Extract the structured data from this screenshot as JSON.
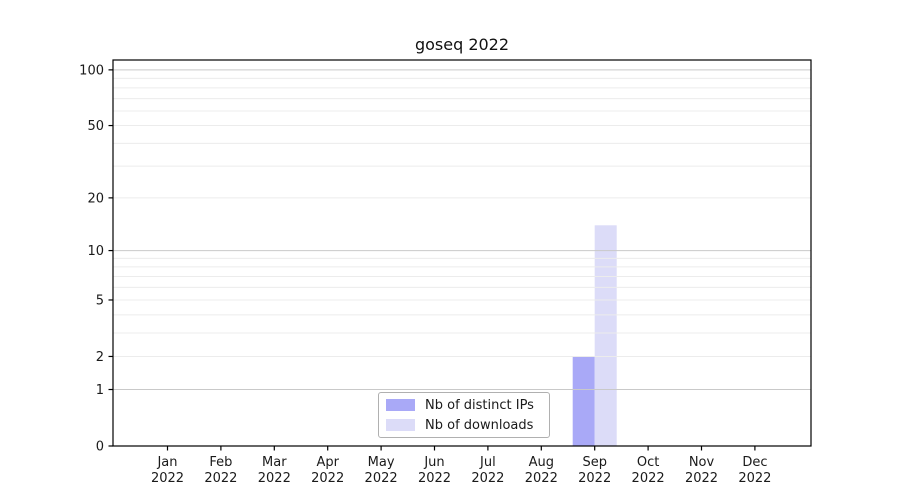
{
  "chart_data": {
    "type": "bar",
    "title": "goseq 2022",
    "categories": [
      "Jan 2022",
      "Feb 2022",
      "Mar 2022",
      "Apr 2022",
      "May 2022",
      "Jun 2022",
      "Jul 2022",
      "Aug 2022",
      "Sep 2022",
      "Oct 2022",
      "Nov 2022",
      "Dec 2022"
    ],
    "series": [
      {
        "name": "Nb of distinct IPs",
        "color": "#a9a9f7",
        "values": [
          0,
          0,
          0,
          0,
          0,
          0,
          0,
          0,
          2,
          0,
          0,
          0
        ]
      },
      {
        "name": "Nb of downloads",
        "color": "#dcdcf8",
        "values": [
          0,
          0,
          0,
          0,
          0,
          0,
          0,
          0,
          14,
          0,
          0,
          0
        ]
      }
    ],
    "xlabel": "",
    "ylabel": "",
    "yscale": "log1p",
    "ylim": [
      0,
      113
    ],
    "yticks": [
      0,
      1,
      2,
      5,
      10,
      20,
      50,
      100
    ],
    "major_gridlines": [
      1,
      10,
      100
    ],
    "minor_gridlines": [
      2,
      3,
      4,
      5,
      6,
      7,
      8,
      9,
      20,
      30,
      40,
      50,
      60,
      70,
      80,
      90
    ],
    "grid": true,
    "legend_position": "lower center inside plot",
    "colors": {
      "axis": "#000000",
      "text": "#1a1a1a",
      "major_grid": "#c9c9c9",
      "minor_grid": "#ececec",
      "background": "#ffffff"
    }
  }
}
